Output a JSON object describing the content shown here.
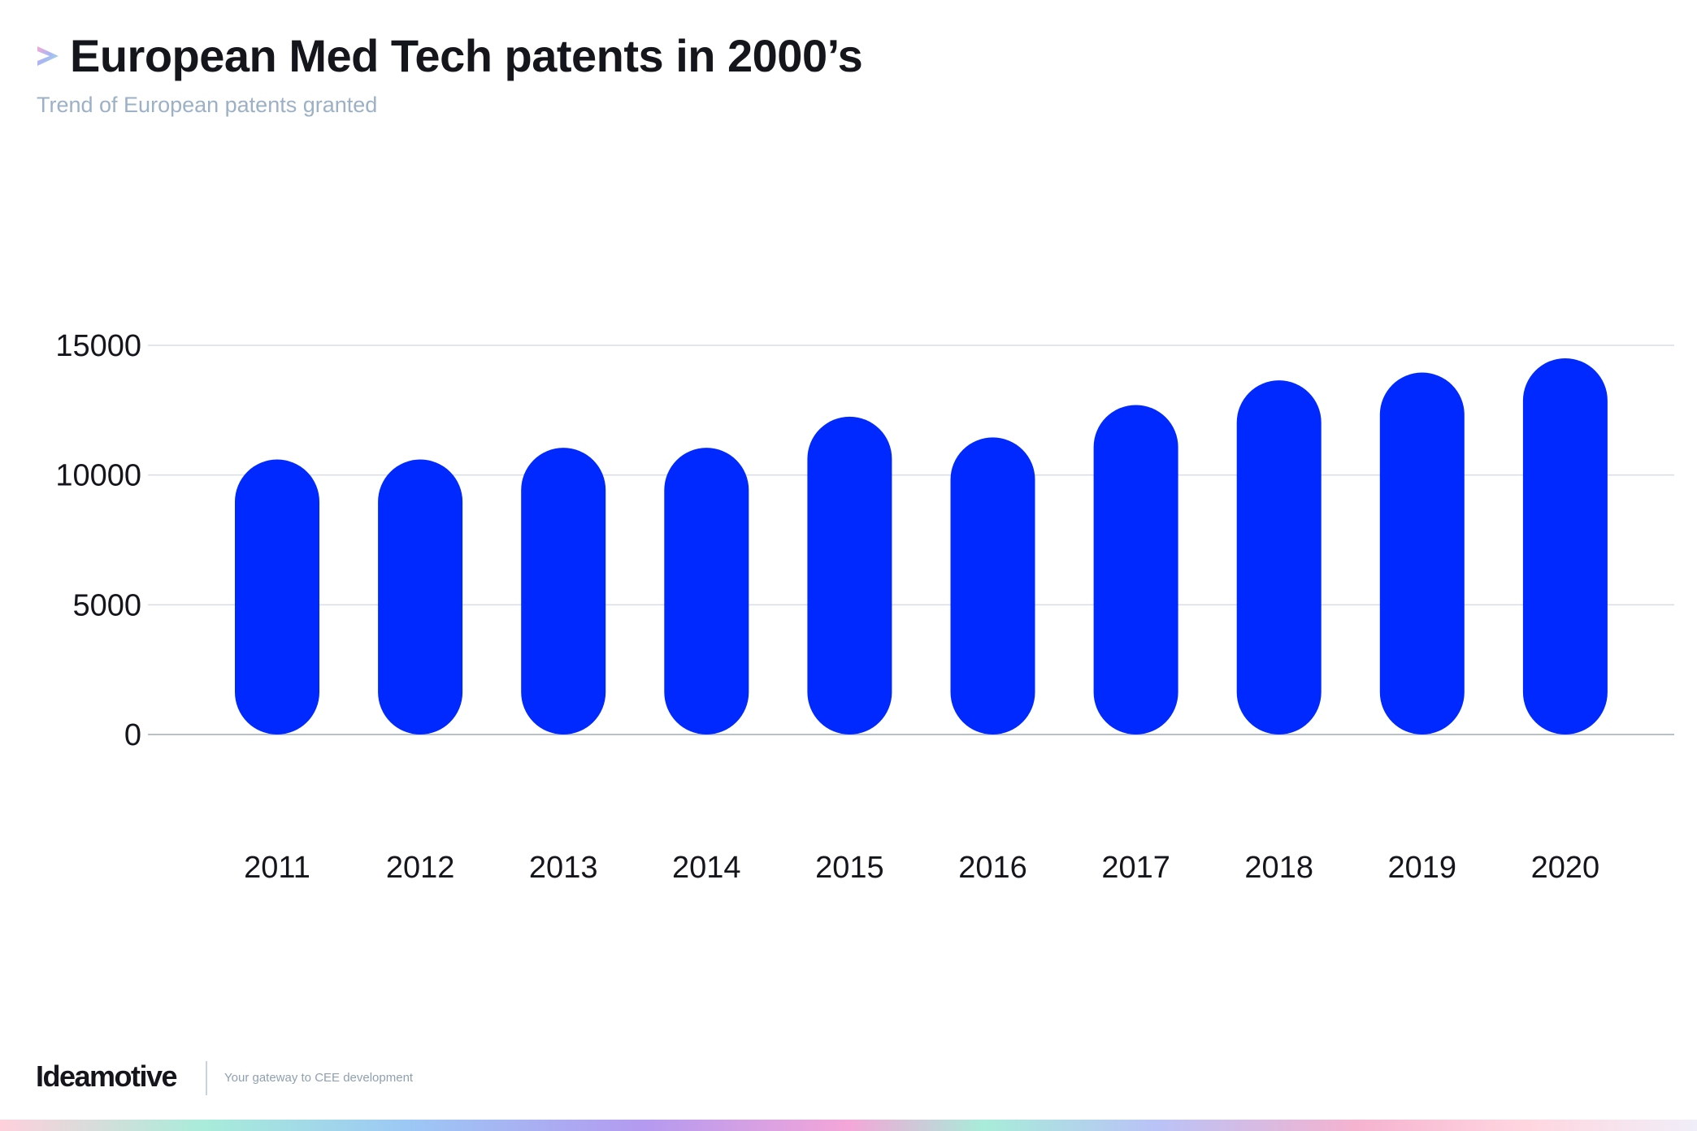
{
  "header": {
    "title": "European Med Tech patents in 2000’s",
    "subtitle": "Trend of European patents granted",
    "icon": "chevron-right-icon"
  },
  "chart_data": {
    "type": "bar",
    "title": "European Med Tech patents in 2000’s",
    "subtitle": "Trend of European patents granted",
    "categories": [
      "2011",
      "2012",
      "2013",
      "2014",
      "2015",
      "2016",
      "2017",
      "2018",
      "2019",
      "2020"
    ],
    "values": [
      10600,
      10600,
      11050,
      11050,
      12250,
      11450,
      12700,
      13650,
      13950,
      14500
    ],
    "yticks": [
      "0",
      "5000",
      "10000",
      "15000"
    ],
    "ylim": [
      0,
      15000
    ],
    "xlabel": "",
    "ylabel": "",
    "grid": true,
    "bar_color": "#0029ff",
    "grid_color": "#d9dde3"
  },
  "footer": {
    "brand": "Ideamotive",
    "tagline": "Your gateway to CEE development"
  }
}
